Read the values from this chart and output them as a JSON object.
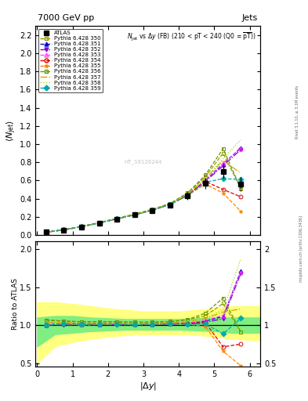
{
  "title_top": "7000 GeV pp",
  "title_right": "Jets",
  "ylabel_main": "$\\langle N_\\mathrm{jet}\\rangle$",
  "ylabel_ratio": "Ratio to ATLAS",
  "xlabel": "$|\\Delta y|$",
  "watermark": "HT_S9126244",
  "x_data": [
    0.25,
    0.75,
    1.25,
    1.75,
    2.25,
    2.75,
    3.25,
    3.75,
    4.25,
    4.75,
    5.25,
    5.75
  ],
  "atlas_y": [
    0.03,
    0.055,
    0.09,
    0.13,
    0.175,
    0.22,
    0.27,
    0.33,
    0.43,
    0.57,
    0.7,
    0.56
  ],
  "atlas_yerr": [
    0.004,
    0.006,
    0.009,
    0.012,
    0.015,
    0.018,
    0.022,
    0.027,
    0.04,
    0.06,
    0.08,
    0.08
  ],
  "series": [
    {
      "label": "Pythia 6.428 350",
      "color": "#999900",
      "marker": "s",
      "markerfacecolor": "none",
      "linestyle": "--",
      "y": [
        0.032,
        0.058,
        0.094,
        0.136,
        0.182,
        0.228,
        0.28,
        0.345,
        0.46,
        0.64,
        0.9,
        0.51
      ]
    },
    {
      "label": "Pythia 6.428 351",
      "color": "#0000dd",
      "marker": "^",
      "markerfacecolor": "#0000dd",
      "linestyle": "--",
      "y": [
        0.03,
        0.056,
        0.091,
        0.132,
        0.178,
        0.223,
        0.274,
        0.338,
        0.44,
        0.6,
        0.78,
        0.96
      ]
    },
    {
      "label": "Pythia 6.428 352",
      "color": "#8800cc",
      "marker": "v",
      "markerfacecolor": "#8800cc",
      "linestyle": "-.",
      "y": [
        0.03,
        0.055,
        0.09,
        0.131,
        0.176,
        0.221,
        0.272,
        0.335,
        0.435,
        0.59,
        0.76,
        0.94
      ]
    },
    {
      "label": "Pythia 6.428 353",
      "color": "#ff44ff",
      "marker": "^",
      "markerfacecolor": "none",
      "linestyle": "--",
      "y": [
        0.031,
        0.057,
        0.092,
        0.133,
        0.179,
        0.224,
        0.276,
        0.34,
        0.442,
        0.605,
        0.79,
        0.95
      ]
    },
    {
      "label": "Pythia 6.428 354",
      "color": "#dd0000",
      "marker": "o",
      "markerfacecolor": "none",
      "linestyle": "--",
      "y": [
        0.03,
        0.056,
        0.091,
        0.132,
        0.177,
        0.222,
        0.273,
        0.336,
        0.44,
        0.59,
        0.5,
        0.42
      ]
    },
    {
      "label": "Pythia 6.428 355",
      "color": "#ff8800",
      "marker": "*",
      "markerfacecolor": "#ff8800",
      "linestyle": "--",
      "y": [
        0.03,
        0.056,
        0.09,
        0.131,
        0.176,
        0.221,
        0.272,
        0.335,
        0.435,
        0.56,
        0.46,
        0.26
      ]
    },
    {
      "label": "Pythia 6.428 356",
      "color": "#669900",
      "marker": "s",
      "markerfacecolor": "none",
      "linestyle": "--",
      "y": [
        0.032,
        0.058,
        0.094,
        0.136,
        0.183,
        0.229,
        0.281,
        0.346,
        0.462,
        0.66,
        0.95,
        0.51
      ]
    },
    {
      "label": "Pythia 6.428 357",
      "color": "#ccaa00",
      "marker": "",
      "markerfacecolor": "#ccaa00",
      "linestyle": "-.",
      "y": [
        0.031,
        0.057,
        0.092,
        0.133,
        0.179,
        0.224,
        0.276,
        0.34,
        0.45,
        0.62,
        0.82,
        0.68
      ]
    },
    {
      "label": "Pythia 6.428 358",
      "color": "#aadd00",
      "marker": "",
      "markerfacecolor": "#aadd00",
      "linestyle": ":",
      "y": [
        0.031,
        0.057,
        0.092,
        0.133,
        0.179,
        0.224,
        0.276,
        0.34,
        0.45,
        0.625,
        0.84,
        1.05
      ]
    },
    {
      "label": "Pythia 6.428 359",
      "color": "#00aaaa",
      "marker": "D",
      "markerfacecolor": "#00aaaa",
      "linestyle": "--",
      "y": [
        0.03,
        0.056,
        0.091,
        0.132,
        0.177,
        0.222,
        0.273,
        0.336,
        0.435,
        0.58,
        0.62,
        0.61
      ]
    }
  ],
  "ylim_main": [
    0.0,
    2.3
  ],
  "ylim_ratio": [
    0.45,
    2.1
  ],
  "xlim": [
    -0.05,
    6.3
  ],
  "yticks_main": [
    0.0,
    0.2,
    0.4,
    0.6,
    0.8,
    1.0,
    1.2,
    1.4,
    1.6,
    1.8,
    2.0,
    2.2
  ],
  "yticks_ratio": [
    0.5,
    1.0,
    1.5,
    2.0
  ],
  "xticks": [
    0,
    1,
    2,
    3,
    4,
    5,
    6
  ],
  "green_band": {
    "x": [
      0.0,
      0.5,
      1.0,
      1.5,
      2.0,
      2.5,
      3.0,
      3.5,
      4.0,
      4.5,
      5.0,
      5.5,
      6.3
    ],
    "lo": [
      0.72,
      0.88,
      0.9,
      0.92,
      0.93,
      0.94,
      0.94,
      0.94,
      0.94,
      0.93,
      0.92,
      0.9,
      0.9
    ],
    "hi": [
      1.1,
      1.12,
      1.12,
      1.1,
      1.09,
      1.08,
      1.08,
      1.08,
      1.08,
      1.09,
      1.1,
      1.1,
      1.1
    ]
  },
  "yellow_band": {
    "x": [
      0.0,
      0.5,
      1.0,
      1.5,
      2.0,
      2.5,
      3.0,
      3.5,
      4.0,
      4.5,
      5.0,
      5.5,
      6.3
    ],
    "lo": [
      0.5,
      0.72,
      0.78,
      0.82,
      0.85,
      0.87,
      0.88,
      0.88,
      0.88,
      0.87,
      0.85,
      0.82,
      0.8
    ],
    "hi": [
      1.3,
      1.3,
      1.28,
      1.25,
      1.22,
      1.2,
      1.18,
      1.18,
      1.18,
      1.2,
      1.22,
      1.25,
      1.25
    ]
  }
}
